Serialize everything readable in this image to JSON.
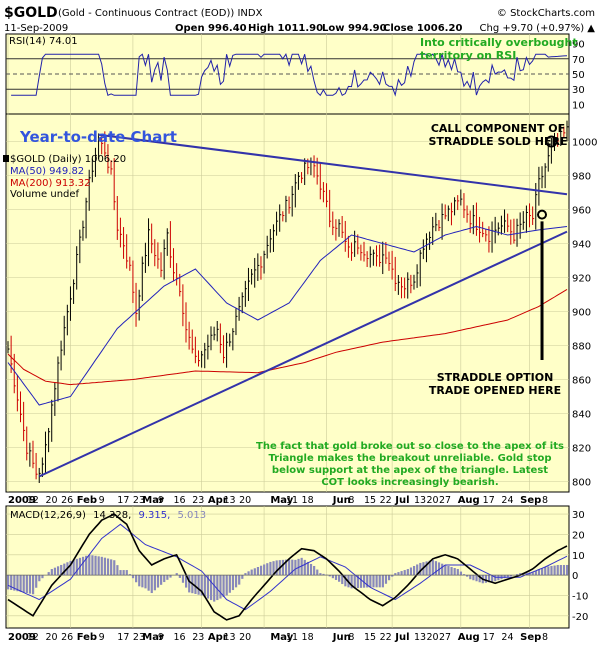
{
  "header": {
    "symbol": "$GOLD",
    "description": "(Gold - Continuous Contract (EOD)) INDX",
    "credit": "© StockCharts.com",
    "date": "11-Sep-2009",
    "open": "Open 996.40",
    "high": "High 1011.90",
    "low": "Low 994.90",
    "close": "Close 1006.20",
    "change": "Chg +9.70 (+0.97%) ▲"
  },
  "colors": {
    "panel_bg": "#ffffc8",
    "price_up": "#000000",
    "price_down": "#cc0000",
    "ma50": "#2222bb",
    "ma200": "#cc0000",
    "trendline": "#3333aa",
    "annotation_green": "#22aa22",
    "annotation_black": "#000000",
    "macd_line": "#000000",
    "signal_line": "#3333cc",
    "histogram": "#8888bb",
    "rsi_line": "#2222aa"
  },
  "rsi": {
    "label": "RSI(14) 74.01",
    "ticks": [
      "90",
      "70",
      "50",
      "30",
      "10"
    ]
  },
  "price": {
    "legend_title": "$GOLD (Daily) 1006.20",
    "legend_ma50": "MA(50) 949.82",
    "legend_ma200": "MA(200) 913.32",
    "legend_volume": "Volume undef",
    "ticks": [
      "1000",
      "980",
      "960",
      "940",
      "920",
      "900",
      "880",
      "860",
      "840",
      "820",
      "800"
    ]
  },
  "macd": {
    "label_name": "MACD(12,26,9)",
    "label_macd": "14.328,",
    "label_signal": "9.315,",
    "label_hist": "5.013",
    "ticks": [
      "30",
      "20",
      "10",
      "0",
      "-10",
      "-20"
    ]
  },
  "xaxis": {
    "labels": [
      "2009",
      "12",
      "20",
      "26",
      "Feb",
      "9",
      "17",
      "23",
      "Mar",
      "9",
      "16",
      "23",
      "Apr",
      "13",
      "20",
      "May",
      "11",
      "18",
      "Jun",
      "8",
      "15",
      "22",
      "Jul",
      "13",
      "20",
      "27",
      "Aug",
      "17",
      "24",
      "Sep",
      "8"
    ]
  },
  "annotations": {
    "rsi_note_line1": "Into critically overbought",
    "rsi_note_line2": "territory on RSI",
    "ytd": "Year-to-date Chart",
    "call_line1": "CALL COMPONENT OF",
    "call_line2": "STRADDLE SOLD HERE",
    "straddle_line1": "STRADDLE OPTION",
    "straddle_line2": "TRADE OPENED HERE",
    "comment_line1": "The fact that gold broke out so close to the apex of its",
    "comment_line2": "Triangle makes the breakout unreliable. Gold stop",
    "comment_line3": "below support at the apex of the triangle. Latest",
    "comment_line4": "COT looks increasingly bearish."
  },
  "chart_data": {
    "type": "line",
    "title": "$GOLD (Gold - Continuous Contract (EOD)) INDX",
    "x": [
      "2009",
      "Feb",
      "Mar",
      "Apr",
      "May",
      "Jun",
      "Jul",
      "Aug",
      "Sep"
    ],
    "series": [
      {
        "name": "$GOLD (Daily) 1006.20",
        "values": [
          875,
          900,
          935,
          885,
          905,
          965,
          920,
          955,
          1006
        ]
      },
      {
        "name": "MA(50) 949.82",
        "values": [
          825,
          855,
          915,
          930,
          900,
          945,
          935,
          945,
          950
        ]
      },
      {
        "name": "MA(200) 913.32",
        "values": [
          850,
          857,
          862,
          865,
          865,
          875,
          882,
          893,
          913
        ]
      },
      {
        "name": "RSI(14) 74.01",
        "values": [
          50,
          55,
          70,
          40,
          55,
          62,
          40,
          58,
          74
        ]
      },
      {
        "name": "MACD(12,26,9)",
        "values": [
          5,
          25,
          30,
          -5,
          -10,
          12,
          -10,
          5,
          14.3
        ]
      }
    ],
    "ylim": [
      795,
      1015
    ],
    "rsi_ylim": [
      0,
      100
    ],
    "macd_ylim": [
      -25,
      33
    ],
    "grid": true
  }
}
